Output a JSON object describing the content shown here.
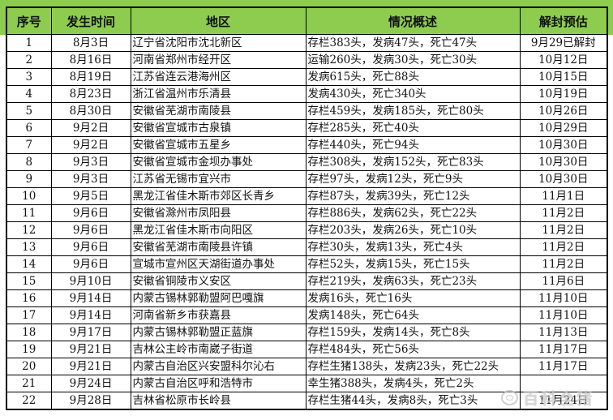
{
  "colors": {
    "header_bg": "#8ecc4f",
    "border": "#000000"
  },
  "watermark": {
    "text": "百科全猪",
    "icon": "pig-logo"
  },
  "table": {
    "columns": [
      {
        "key": "no",
        "label": "序号",
        "align": "center"
      },
      {
        "key": "date",
        "label": "发生时间",
        "align": "center"
      },
      {
        "key": "region",
        "label": "地区",
        "align": "left"
      },
      {
        "key": "summary",
        "label": "情况概述",
        "align": "left"
      },
      {
        "key": "estimate",
        "label": "解封预估",
        "align": "center"
      }
    ],
    "rows": [
      {
        "no": "1",
        "date": "8月3日",
        "region": "辽宁省沈阳市沈北新区",
        "summary": "存栏383头，发病47头，死亡47头",
        "estimate": "9月29已解封"
      },
      {
        "no": "2",
        "date": "8月16日",
        "region": "河南省郑州市经开区",
        "summary": "运输260头，发病30头，死亡30头",
        "estimate": "10月12日"
      },
      {
        "no": "3",
        "date": "8月19日",
        "region": "江苏省连云港海州区",
        "summary": "发病615头，死亡88头",
        "estimate": "10月15日"
      },
      {
        "no": "4",
        "date": "8月23日",
        "region": "浙江省温州市乐清县",
        "summary": "发病430头，死亡340头",
        "estimate": "10月19日"
      },
      {
        "no": "5",
        "date": "8月30日",
        "region": "安徽省芜湖市南陵县",
        "summary": "存栏459头，发病185头，死亡80头",
        "estimate": "10月26日"
      },
      {
        "no": "6",
        "date": "9月2日",
        "region": "安徽省宣城市古泉镇",
        "summary": "存栏285头，死亡40头",
        "estimate": "10月29日"
      },
      {
        "no": "7",
        "date": "9月2日",
        "region": "安徽省宣城市五星乡",
        "summary": "存栏440头，死亡94头",
        "estimate": "10月30日"
      },
      {
        "no": "8",
        "date": "9月3日",
        "region": "安徽省宣城市金坝办事处",
        "summary": "存栏308头，发病152头，死亡83头",
        "estimate": "10月30日"
      },
      {
        "no": "9",
        "date": "9月3日",
        "region": "江苏省无锡市宜兴市",
        "summary": "存栏97头，发病12头，死亡9头",
        "estimate": "10月30日"
      },
      {
        "no": "10",
        "date": "9月5日",
        "region": "黑龙江省佳木斯市郊区长青乡",
        "summary": "存栏87头，发病39头，死亡12头",
        "estimate": "11月1日"
      },
      {
        "no": "11",
        "date": "9月6日",
        "region": "安徽省滁州市凤阳县",
        "summary": "存栏886头，发病62头，死亡22头",
        "estimate": "11月2日"
      },
      {
        "no": "12",
        "date": "9月6日",
        "region": "黑龙江省佳木斯市向阳区",
        "summary": "存栏203头，发病26头，死亡10头",
        "estimate": "11月2日"
      },
      {
        "no": "13",
        "date": "9月6日",
        "region": "安徽省芜湖市南陵县许镇",
        "summary": "存栏30头，发病13头，死亡4头",
        "estimate": "11月2日"
      },
      {
        "no": "14",
        "date": "9月6日",
        "region": "宣城市宣州区天湖街道办事处",
        "summary": "存栏52头，发病15头，死亡15头",
        "estimate": "11月2日"
      },
      {
        "no": "15",
        "date": "9月10日",
        "region": "安徽省铜陵市义安区",
        "summary": "存栏219头，发病63头，死亡23头",
        "estimate": "11月6日"
      },
      {
        "no": "16",
        "date": "9月14日",
        "region": "内蒙古锡林郭勒盟阿巴嘎旗",
        "summary": "发病16头，死亡16头",
        "estimate": "11月10日"
      },
      {
        "no": "17",
        "date": "9月14日",
        "region": "河南省新乡市获嘉县",
        "summary": "发病148头，死亡64头",
        "estimate": "11月10日"
      },
      {
        "no": "18",
        "date": "9月17日",
        "region": "内蒙古锡林郭勒盟正蓝旗",
        "summary": "存栏159头，发病14头，死亡8头",
        "estimate": "11月13日"
      },
      {
        "no": "19",
        "date": "9月21日",
        "region": "吉林公主岭市南崴子街道",
        "summary": "存栏484头，死亡56头",
        "estimate": "11月17日"
      },
      {
        "no": "20",
        "date": "9月21日",
        "region": "内蒙古自治区兴安盟科尔沁右",
        "summary": "存栏生猪138头，发病23头，死亡22头",
        "estimate": "11月17日"
      },
      {
        "no": "21",
        "date": "9月24日",
        "region": "内蒙古自治区呼和浩特市",
        "summary": "幸生猪388头，发病4头，死亡2头",
        "estimate": ""
      },
      {
        "no": "22",
        "date": "9月28日",
        "region": "吉林省松原市长岭县",
        "summary": "存栏生猪44头，发病8头，死亡3头",
        "estimate": "11月24日"
      }
    ]
  }
}
